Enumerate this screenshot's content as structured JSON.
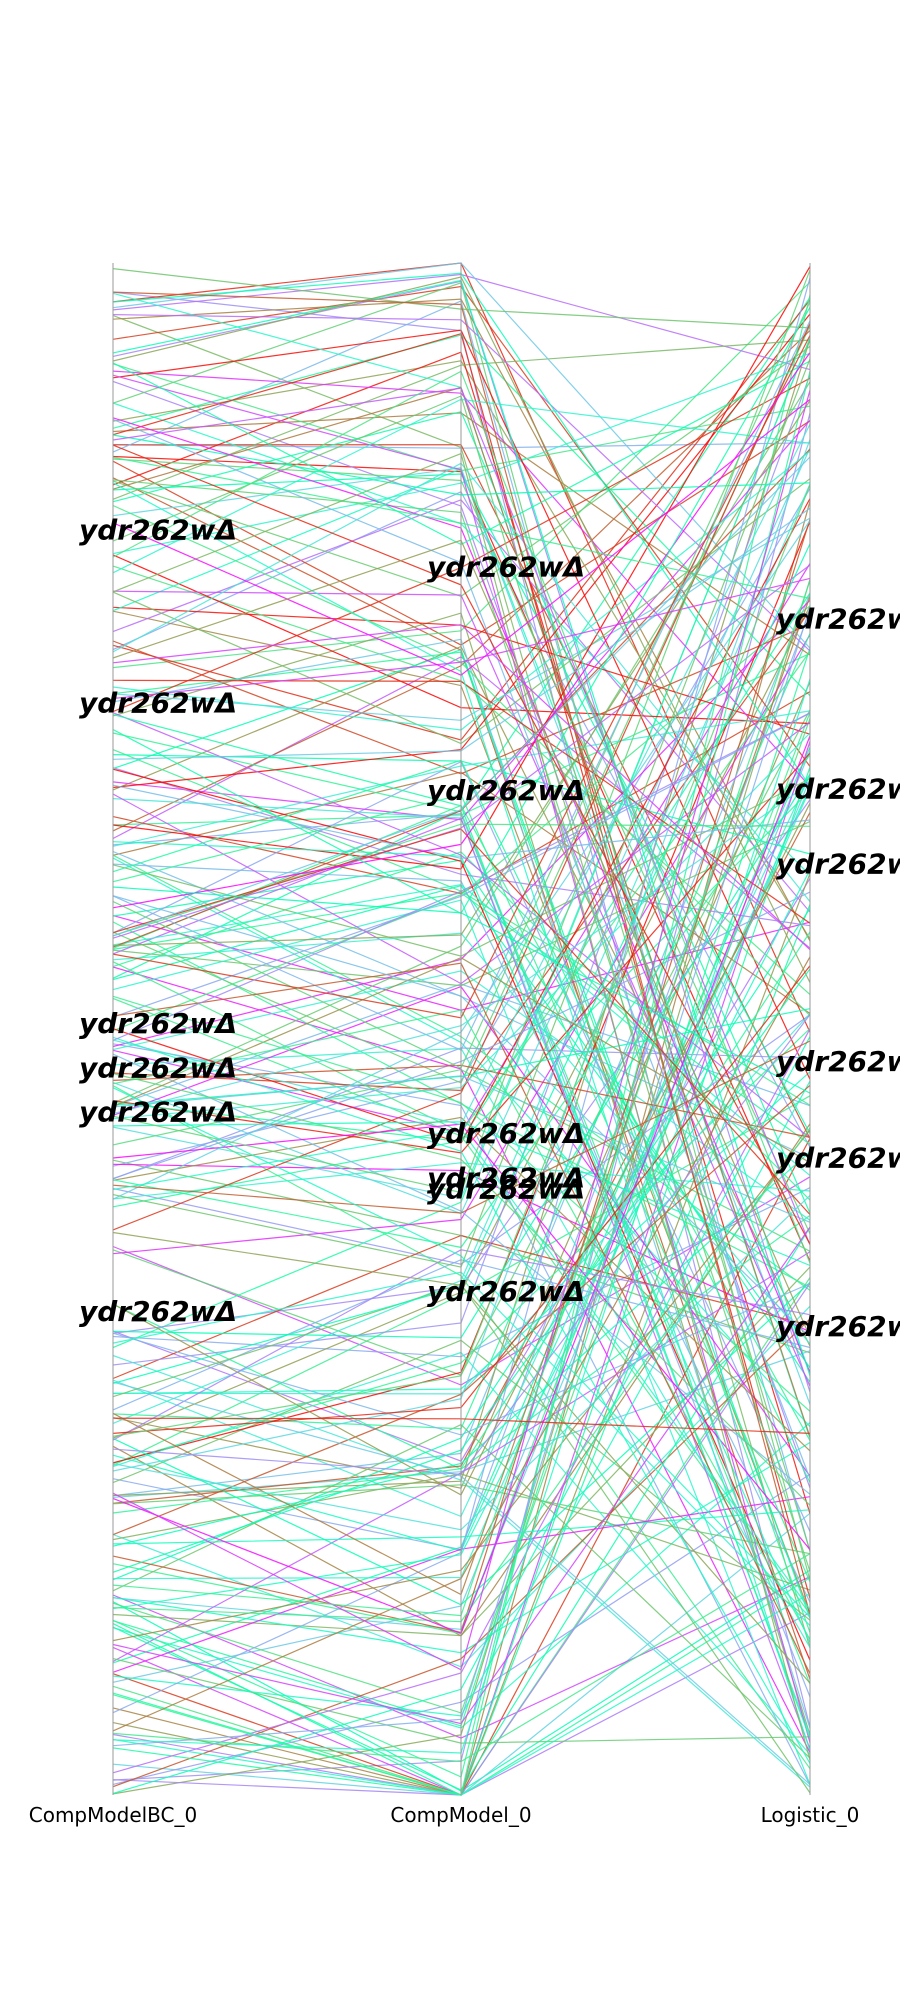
{
  "chart_data": {
    "type": "parallel_coordinates",
    "axes": [
      "CompModelBC_0",
      "CompModel_0",
      "Logistic_0"
    ],
    "colormap": "rainbow",
    "line_count": 300,
    "grid": false,
    "legend": "none",
    "highlight_label": "ydr262wΔ",
    "highlighted_ranks": [
      {
        "CompModelBC_0": 0.174,
        "CompModel_0": 0.198,
        "Logistic_0": 0.232
      },
      {
        "CompModelBC_0": 0.287,
        "CompModel_0": 0.344,
        "Logistic_0": 0.343
      },
      {
        "CompModelBC_0": 0.496,
        "CompModel_0": 0.568,
        "Logistic_0": 0.392
      },
      {
        "CompModelBC_0": 0.525,
        "CompModel_0": 0.597,
        "Logistic_0": 0.521
      },
      {
        "CompModelBC_0": 0.554,
        "CompModel_0": 0.604,
        "Logistic_0": 0.584
      },
      {
        "CompModelBC_0": 0.684,
        "CompModel_0": 0.671,
        "Logistic_0": 0.694
      }
    ]
  }
}
